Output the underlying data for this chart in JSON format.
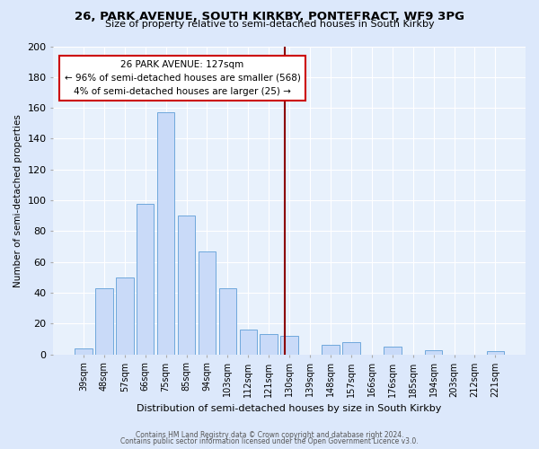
{
  "title": "26, PARK AVENUE, SOUTH KIRKBY, PONTEFRACT, WF9 3PG",
  "subtitle": "Size of property relative to semi-detached houses in South Kirkby",
  "xlabel": "Distribution of semi-detached houses by size in South Kirkby",
  "ylabel": "Number of semi-detached properties",
  "bar_labels": [
    "39sqm",
    "48sqm",
    "57sqm",
    "66sqm",
    "75sqm",
    "85sqm",
    "94sqm",
    "103sqm",
    "112sqm",
    "121sqm",
    "130sqm",
    "139sqm",
    "148sqm",
    "157sqm",
    "166sqm",
    "176sqm",
    "185sqm",
    "194sqm",
    "203sqm",
    "212sqm",
    "221sqm"
  ],
  "bar_values": [
    4,
    43,
    50,
    98,
    157,
    90,
    67,
    43,
    16,
    13,
    12,
    0,
    6,
    8,
    0,
    5,
    0,
    3,
    0,
    0,
    2
  ],
  "bar_color": "#c9daf8",
  "bar_edge_color": "#6fa8dc",
  "vline_x": 9.78,
  "annotation_title": "26 PARK AVENUE: 127sqm",
  "annotation_line1": "← 96% of semi-detached houses are smaller (568)",
  "annotation_line2": "4% of semi-detached houses are larger (25) →",
  "ylim": [
    0,
    200
  ],
  "yticks": [
    0,
    20,
    40,
    60,
    80,
    100,
    120,
    140,
    160,
    180,
    200
  ],
  "footer1": "Contains HM Land Registry data © Crown copyright and database right 2024.",
  "footer2": "Contains public sector information licensed under the Open Government Licence v3.0.",
  "bg_color": "#dce8fb",
  "plot_bg_color": "#e8f1fc"
}
